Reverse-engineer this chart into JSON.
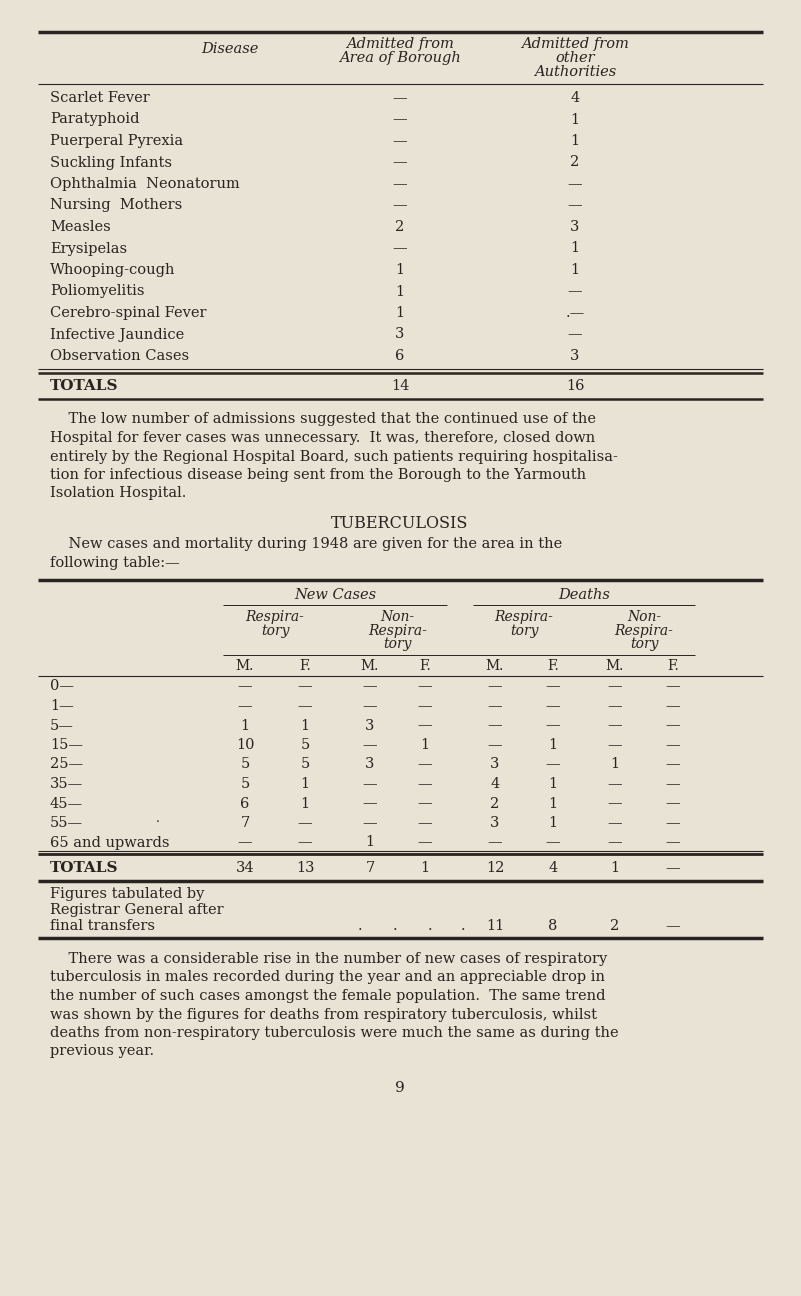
{
  "bg_color": "#e8e3d5",
  "text_color": "#2a2420",
  "table1": {
    "rows": [
      [
        "Scarlet Fever",
        "—",
        "4"
      ],
      [
        "Paratyphoid",
        "—",
        "1"
      ],
      [
        "Puerperal Pyrexia",
        "—",
        "1"
      ],
      [
        "Suckling Infants",
        "—",
        "2"
      ],
      [
        "Ophthalmia  Neonatorum",
        "—",
        "—"
      ],
      [
        "Nursing  Mothers",
        "—",
        "—"
      ],
      [
        "Measles",
        "2",
        "3"
      ],
      [
        "Erysipelas",
        "—",
        "1"
      ],
      [
        "Whooping-cough",
        "1",
        "1"
      ],
      [
        "Poliomyelitis",
        "1",
        "—"
      ],
      [
        "Cerebro-spinal Fever",
        "1",
        ".—"
      ],
      [
        "Infective Jaundice",
        "3",
        "—"
      ],
      [
        "Observation Cases",
        "6",
        "3"
      ]
    ],
    "totals_row": [
      "Totals",
      "14",
      "16"
    ]
  },
  "paragraph1_lines": [
    "    The low number of admissions suggested that the continued use of the",
    "Hospital for fever cases was unnecessary.  It was, therefore, closed down",
    "entirely by the Regional Hospital Board, such patients requiring hospitalisa-",
    "tion for infectious disease being sent from the Borough to the Yarmouth",
    "Isolation Hospital."
  ],
  "section_title": "Tuberculosis",
  "paragraph2_lines": [
    "    New cases and mortality during 1948 are given for the area in the",
    "following table:—"
  ],
  "table2": {
    "age_rows": [
      {
        "age": "0—",
        "vals": [
          "—",
          "—",
          "—",
          "—",
          "—",
          "—",
          "—",
          "—"
        ]
      },
      {
        "age": "1—",
        "vals": [
          "—",
          "—",
          "—",
          "—",
          "—",
          "—",
          "—",
          "—"
        ]
      },
      {
        "age": "5—",
        "vals": [
          "1",
          "1",
          "3",
          "—",
          "—",
          "—",
          "—",
          "—"
        ]
      },
      {
        "age": "15—",
        "vals": [
          "10",
          "5",
          "—",
          "1",
          "—",
          "1",
          "—",
          "—"
        ]
      },
      {
        "age": "25—",
        "vals": [
          "5",
          "5",
          "3",
          "—",
          "3",
          "—",
          "1",
          "—"
        ]
      },
      {
        "age": "35—",
        "vals": [
          "5",
          "1",
          "—",
          "—",
          "4",
          "1",
          "—",
          "—"
        ]
      },
      {
        "age": "45—",
        "vals": [
          "6",
          "1",
          "—",
          "—",
          "2",
          "1",
          "—",
          "—"
        ]
      },
      {
        "age": "55—",
        "vals": [
          "7",
          "—",
          "—",
          "—",
          "3",
          "1",
          "—",
          "—"
        ]
      },
      {
        "age": "65 and upwards",
        "vals": [
          "—",
          "—",
          "1",
          "—",
          "—",
          "—",
          "—",
          "—"
        ]
      }
    ],
    "totals_row": {
      "age": "Totals",
      "vals": [
        "34",
        "13",
        "7",
        "1",
        "12",
        "4",
        "1",
        "—"
      ]
    },
    "footnote_lines": [
      "Figures tabulated by",
      "Registrar General after",
      "final transfers"
    ],
    "footnote_vals": [
      "11",
      "8",
      "2",
      "—"
    ]
  },
  "paragraph3_lines": [
    "    There was a considerable rise in the number of new cases of respiratory",
    "tuberculosis in males recorded during the year and an appreciable drop in",
    "the number of such cases amongst the female population.  The same trend",
    "was shown by the figures for deaths from respiratory tuberculosis, whilst",
    "deaths from non-respiratory tuberculosis were much the same as during the",
    "previous year."
  ],
  "page_number": "9"
}
